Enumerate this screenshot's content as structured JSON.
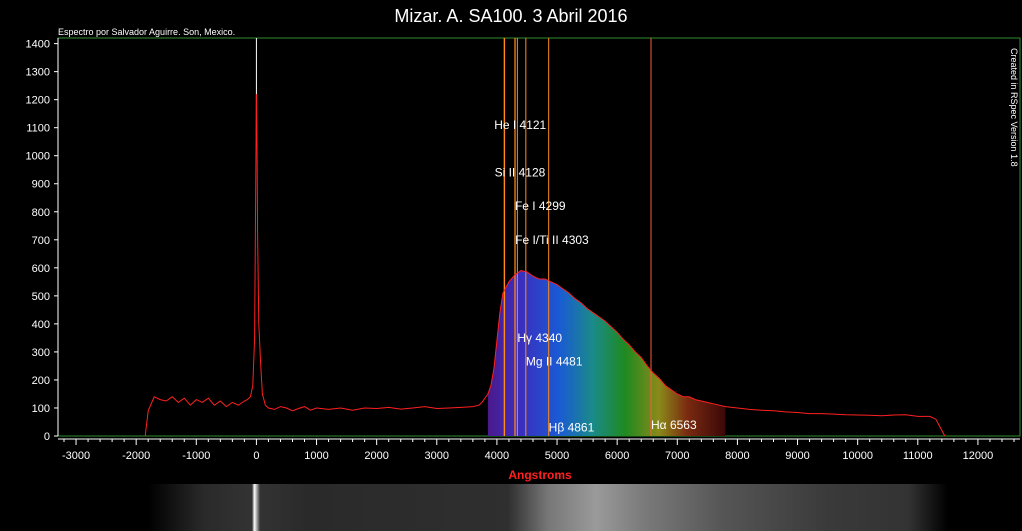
{
  "header": {
    "title": "Mizar. A. SA100. 3 Abril 2016",
    "credit": "Espectro por Salvador Aguirre. Son, Mexico.",
    "created": "Created in RSpec Version 1.8"
  },
  "chart_data": {
    "type": "line",
    "title": "Mizar. A. SA100. 3 Abril 2016",
    "xlabel": "Angstroms",
    "ylabel": "",
    "xlim": [
      -3300,
      12700
    ],
    "ylim": [
      0,
      1420
    ],
    "x_ticks": [
      -3000,
      -2000,
      -1000,
      0,
      1000,
      2000,
      3000,
      4000,
      5000,
      6000,
      7000,
      8000,
      9000,
      10000,
      11000,
      12000
    ],
    "y_ticks": [
      0,
      100,
      200,
      300,
      400,
      500,
      600,
      700,
      800,
      900,
      1000,
      1100,
      1200,
      1300,
      1400
    ],
    "grid": false,
    "colors": {
      "series": "#ff2020",
      "line_orange": "#ff8c1a",
      "line_red": "#ff5a3a",
      "frame": "#2e8b2e"
    },
    "series": [
      {
        "x": [
          -1850,
          -1800,
          -1700,
          -1600,
          -1500,
          -1400,
          -1300,
          -1200,
          -1100,
          -1000,
          -900,
          -800,
          -700,
          -600,
          -500,
          -400,
          -300,
          -200,
          -150,
          -100,
          -60,
          -30,
          0,
          10,
          20,
          40,
          70,
          100,
          150,
          200,
          300,
          400,
          500,
          600,
          700,
          800,
          900,
          1000,
          1200,
          1400,
          1600,
          1800,
          2000,
          2200,
          2400,
          2600,
          2800,
          3000,
          3200,
          3400,
          3600,
          3700,
          3750,
          3800,
          3850,
          3900,
          3950,
          4000,
          4050,
          4100,
          4150,
          4200,
          4300,
          4400,
          4500,
          4600,
          4700,
          4800,
          4900,
          5000,
          5100,
          5200,
          5300,
          5400,
          5500,
          5600,
          5700,
          5800,
          5900,
          6000,
          6100,
          6200,
          6300,
          6400,
          6500,
          6600,
          6700,
          6800,
          6900,
          7000,
          7100,
          7200,
          7300,
          7400,
          7500,
          7600,
          7800,
          8000,
          8200,
          8400,
          8600,
          8800,
          9000,
          9200,
          9400,
          9600,
          9800,
          10000,
          10200,
          10400,
          10600,
          10800,
          11000,
          11200,
          11300,
          11400,
          11450
        ],
        "y": [
          0,
          90,
          140,
          130,
          125,
          140,
          120,
          135,
          110,
          130,
          120,
          135,
          110,
          125,
          105,
          120,
          110,
          125,
          130,
          140,
          180,
          350,
          1220,
          1050,
          720,
          400,
          260,
          150,
          110,
          100,
          95,
          105,
          100,
          90,
          98,
          105,
          92,
          100,
          95,
          100,
          92,
          100,
          98,
          102,
          96,
          100,
          105,
          98,
          100,
          102,
          105,
          110,
          120,
          135,
          150,
          180,
          240,
          340,
          440,
          510,
          530,
          550,
          575,
          590,
          585,
          570,
          560,
          560,
          550,
          540,
          525,
          510,
          490,
          475,
          455,
          440,
          425,
          410,
          390,
          370,
          345,
          325,
          300,
          280,
          250,
          225,
          205,
          180,
          165,
          150,
          140,
          140,
          130,
          125,
          120,
          115,
          105,
          100,
          95,
          92,
          90,
          86,
          84,
          80,
          80,
          78,
          76,
          75,
          74,
          72,
          75,
          76,
          70,
          70,
          60,
          20,
          0
        ]
      }
    ],
    "spectral_lines": [
      {
        "label": "He I 4121",
        "x": 4121,
        "label_y": 1110,
        "color": "#ff8c1a"
      },
      {
        "label": "Si II 4128",
        "x": 4128,
        "label_y": 940,
        "color": "#ff8c1a"
      },
      {
        "label": "Fe I 4299",
        "x": 4299,
        "label_y": 820,
        "color": "#ff8c1a"
      },
      {
        "label": "Fe I/Ti II 4303",
        "x": 4303,
        "label_y": 700,
        "color": "#ff8c1a"
      },
      {
        "label": "Hγ 4340",
        "x": 4340,
        "label_y": 350,
        "color": "#ff8c1a"
      },
      {
        "label": "Mg II 4481",
        "x": 4481,
        "label_y": 265,
        "color": "#ff8c1a"
      },
      {
        "label": "Hβ 4861",
        "x": 4861,
        "label_y": 30,
        "color": "#ff8c1a"
      },
      {
        "label": "Hα 6563",
        "x": 6563,
        "label_y": 40,
        "color": "#ff5a3a"
      }
    ],
    "reference_line_x": 0
  }
}
